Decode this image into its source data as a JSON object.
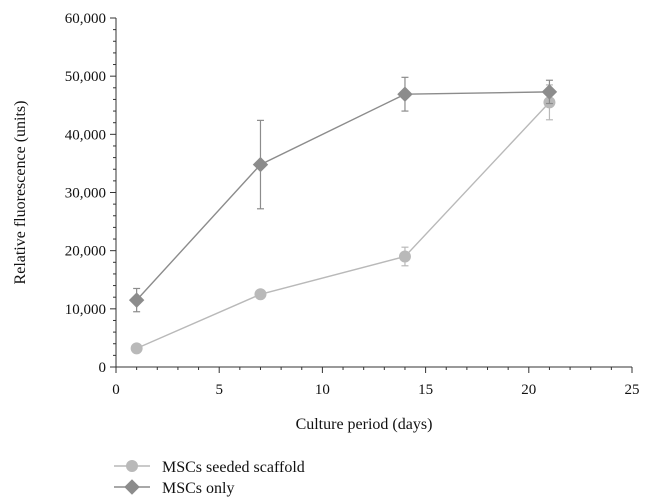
{
  "chart_data": {
    "type": "line",
    "title": "",
    "xlabel": "Culture period (days)",
    "ylabel": "Relative fluorescence (units)",
    "xlim": [
      0,
      25
    ],
    "ylim": [
      0,
      60000
    ],
    "x_ticks": [
      0,
      5,
      10,
      15,
      20,
      25
    ],
    "x_tick_labels": [
      "0",
      "5",
      "10",
      "15",
      "20",
      "25"
    ],
    "y_ticks": [
      0,
      10000,
      20000,
      30000,
      40000,
      50000,
      60000
    ],
    "y_tick_labels": [
      "0",
      "10,000",
      "20,000",
      "30,000",
      "40,000",
      "50,000",
      "60,000"
    ],
    "grid": false,
    "legend_position": "bottom-left",
    "series": [
      {
        "name": "MSCs seeded scaffold",
        "marker": "circle",
        "color": "#b9b9b9",
        "x": [
          1,
          7,
          14,
          21
        ],
        "values": [
          3200,
          12500,
          19000,
          45500
        ],
        "error": [
          null,
          null,
          1600,
          3000
        ]
      },
      {
        "name": "MSCs only",
        "marker": "diamond",
        "color": "#8c8c8c",
        "x": [
          1,
          7,
          14,
          21
        ],
        "values": [
          11500,
          34800,
          46900,
          47300
        ],
        "error": [
          2000,
          7600,
          2900,
          2000
        ]
      }
    ]
  }
}
